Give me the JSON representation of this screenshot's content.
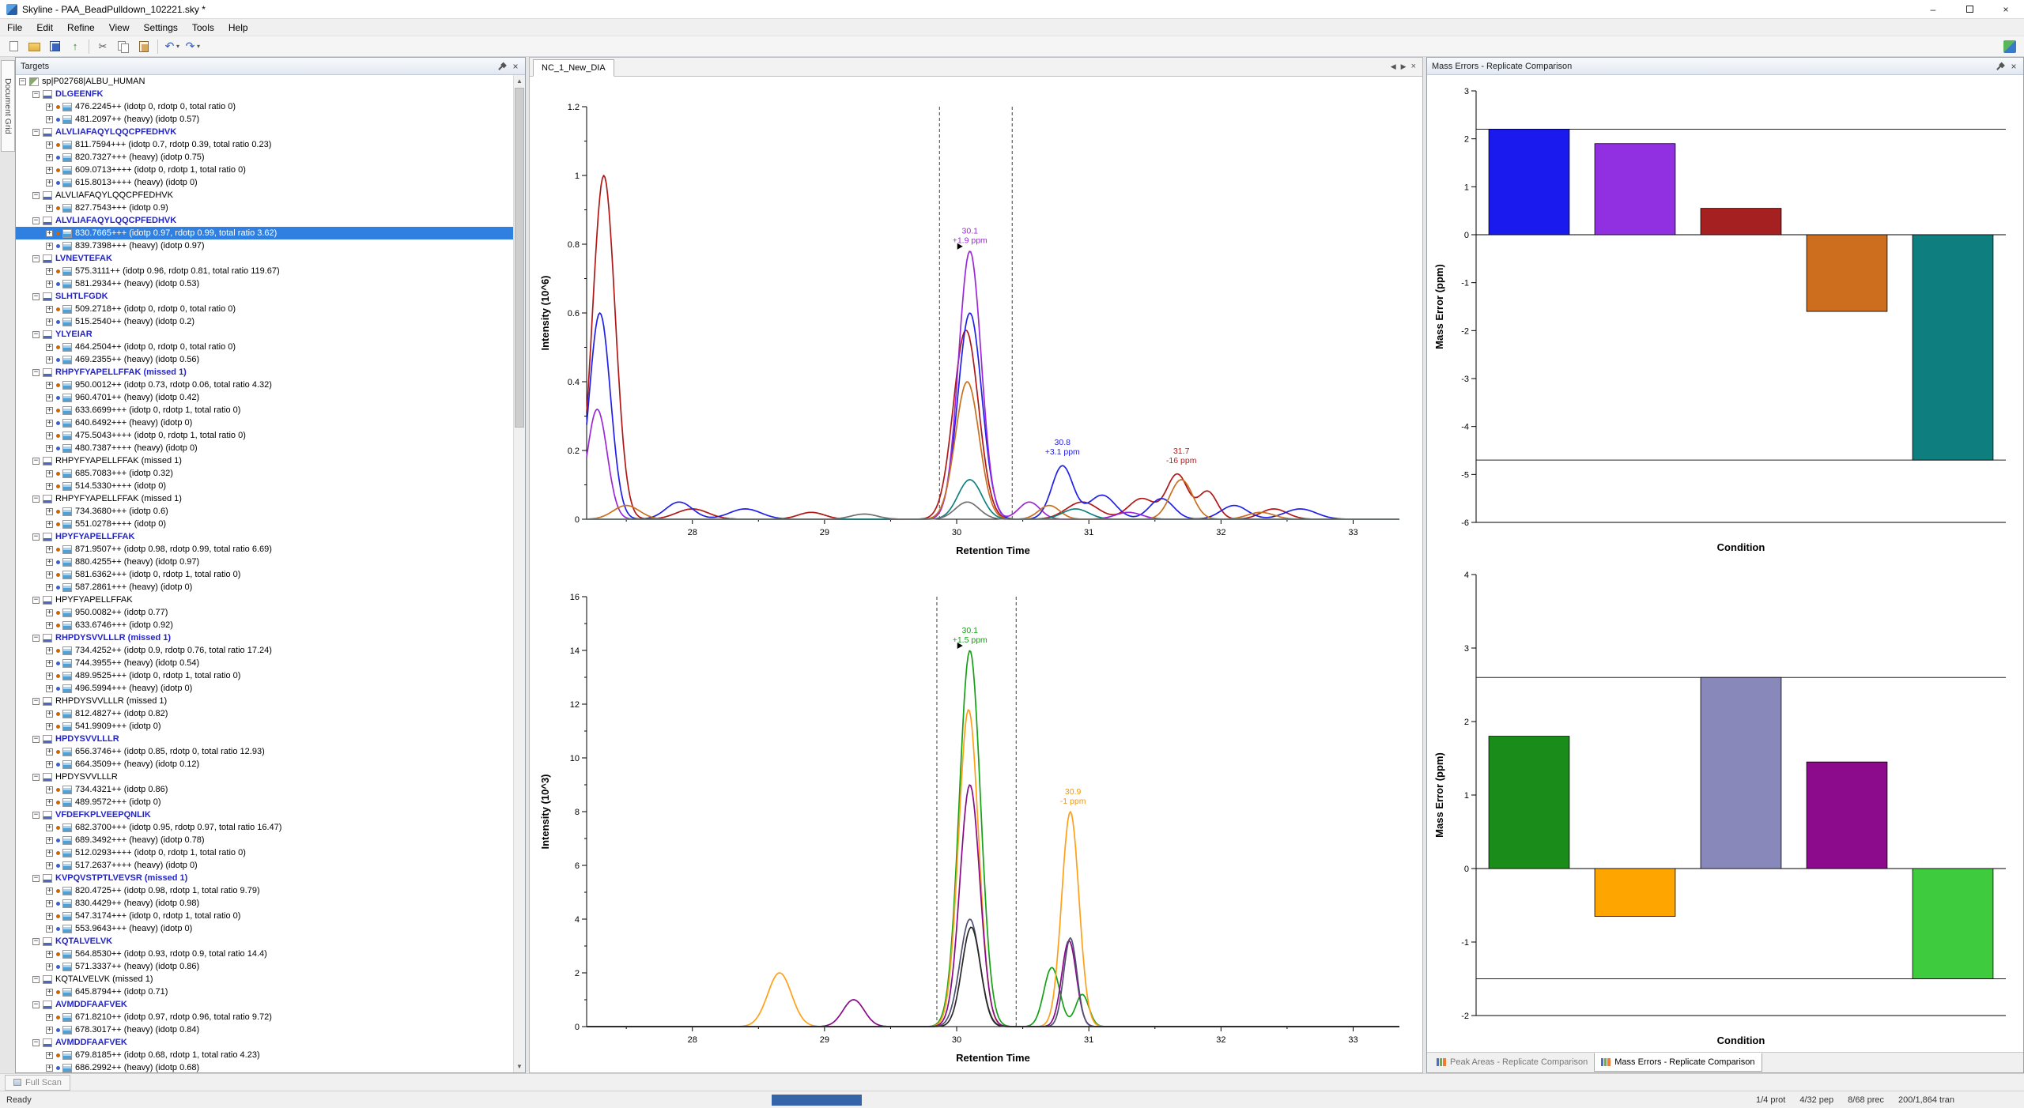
{
  "window": {
    "title": "Skyline - PAA_BeadPulldown_102221.sky *"
  },
  "menu": {
    "items": [
      "File",
      "Edit",
      "Refine",
      "View",
      "Settings",
      "Tools",
      "Help"
    ]
  },
  "toolbar": {
    "buttons": [
      {
        "name": "new-document",
        "icon": "new"
      },
      {
        "name": "open-file",
        "icon": "open"
      },
      {
        "name": "save",
        "icon": "save"
      },
      {
        "name": "publish",
        "icon": "publish",
        "glyph": "↑"
      },
      {
        "sep": true
      },
      {
        "name": "cut",
        "icon": "cut",
        "glyph": "✂"
      },
      {
        "name": "copy",
        "icon": "copy"
      },
      {
        "name": "paste",
        "icon": "paste"
      },
      {
        "sep": true
      },
      {
        "name": "undo",
        "icon": "undo",
        "glyph": "↶",
        "dropdown": true
      },
      {
        "name": "redo",
        "icon": "redo",
        "glyph": "↷",
        "dropdown": true
      }
    ]
  },
  "left_strip": {
    "tab": "Document Grid"
  },
  "targets": {
    "title": "Targets",
    "root": "sp|P02768|ALBU_HUMAN",
    "selection": {
      "peptide_index": 3,
      "child_index": 0
    },
    "peptides": [
      {
        "label": "DLGEENFK",
        "color": "blue",
        "children": [
          "476.2245++ (idotp 0, rdotp 0, total ratio 0)",
          "481.2097++ (heavy) (idotp 0.57)"
        ]
      },
      {
        "label": "ALVLIAFAQYLQQCPFEDHVK",
        "color": "blue",
        "children": [
          "811.7594+++ (idotp 0.7, rdotp 0.39, total ratio 0.23)",
          "820.7327+++ (heavy) (idotp 0.75)",
          "609.0713++++ (idotp 0, rdotp 1, total ratio 0)",
          "615.8013++++ (heavy) (idotp 0)"
        ]
      },
      {
        "label": "ALVLIAFAQYLQQCPFEDHVK",
        "color": "black",
        "children": [
          "827.7543+++ (idotp 0.9)"
        ]
      },
      {
        "label": "ALVLIAFAQYLQQCPFEDHVK",
        "color": "blue",
        "children": [
          "830.7665+++ (idotp 0.97, rdotp 0.99, total ratio 3.62)",
          "839.7398+++ (heavy) (idotp 0.97)"
        ]
      },
      {
        "label": "LVNEVTEFAK",
        "color": "blue",
        "children": [
          "575.3111++ (idotp 0.96, rdotp 0.81, total ratio 119.67)",
          "581.2934++ (heavy) (idotp 0.53)"
        ]
      },
      {
        "label": "SLHTLFGDK",
        "color": "blue",
        "children": [
          "509.2718++ (idotp 0, rdotp 0, total ratio 0)",
          "515.2540++ (heavy) (idotp 0.2)"
        ]
      },
      {
        "label": "YLYEIAR",
        "color": "blue",
        "children": [
          "464.2504++ (idotp 0, rdotp 0, total ratio 0)",
          "469.2355++ (heavy) (idotp 0.56)"
        ]
      },
      {
        "label": "RHPYFYAPELLFFAK (missed 1)",
        "color": "blue",
        "children": [
          "950.0012++ (idotp 0.73, rdotp 0.06, total ratio 4.32)",
          "960.4701++ (heavy) (idotp 0.42)",
          "633.6699+++ (idotp 0, rdotp 1, total ratio 0)",
          "640.6492+++ (heavy) (idotp 0)",
          "475.5043++++ (idotp 0, rdotp 1, total ratio 0)",
          "480.7387++++ (heavy) (idotp 0)"
        ]
      },
      {
        "label": "RHPYFYAPELLFFAK (missed 1)",
        "color": "black",
        "children": [
          "685.7083+++ (idotp 0.32)",
          "514.5330++++ (idotp 0)"
        ]
      },
      {
        "label": "RHPYFYAPELLFFAK (missed 1)",
        "color": "black",
        "children": [
          "734.3680+++ (idotp 0.6)",
          "551.0278++++ (idotp 0)"
        ]
      },
      {
        "label": "HPYFYAPELLFFAK",
        "color": "blue",
        "children": [
          "871.9507++ (idotp 0.98, rdotp 0.99, total ratio 6.69)",
          "880.4255++ (heavy) (idotp 0.97)",
          "581.6362+++ (idotp 0, rdotp 1, total ratio 0)",
          "587.2861+++ (heavy) (idotp 0)"
        ]
      },
      {
        "label": "HPYFYAPELLFFAK",
        "color": "black",
        "children": [
          "950.0082++ (idotp 0.77)",
          "633.6746+++ (idotp 0.92)"
        ]
      },
      {
        "label": "RHPDYSVVLLLR (missed 1)",
        "color": "blue",
        "children": [
          "734.4252++ (idotp 0.9, rdotp 0.76, total ratio 17.24)",
          "744.3955++ (heavy) (idotp 0.54)",
          "489.9525+++ (idotp 0, rdotp 1, total ratio 0)",
          "496.5994+++ (heavy) (idotp 0)"
        ]
      },
      {
        "label": "RHPDYSVVLLLR (missed 1)",
        "color": "black",
        "children": [
          "812.4827++ (idotp 0.82)",
          "541.9909+++ (idotp 0)"
        ]
      },
      {
        "label": "HPDYSVVLLLR",
        "color": "blue",
        "children": [
          "656.3746++ (idotp 0.85, rdotp 0, total ratio 12.93)",
          "664.3509++ (heavy) (idotp 0.12)"
        ]
      },
      {
        "label": "HPDYSVVLLLR",
        "color": "black",
        "children": [
          "734.4321++ (idotp 0.86)",
          "489.9572+++ (idotp 0)"
        ]
      },
      {
        "label": "VFDEFKPLVEEPQNLIK",
        "color": "blue",
        "children": [
          "682.3700+++ (idotp 0.95, rdotp 0.97, total ratio 16.47)",
          "689.3492+++ (heavy) (idotp 0.78)",
          "512.0293++++ (idotp 0, rdotp 1, total ratio 0)",
          "517.2637++++ (heavy) (idotp 0)"
        ]
      },
      {
        "label": "KVPQVSTPTLVEVSR (missed 1)",
        "color": "blue",
        "children": [
          "820.4725++ (idotp 0.98, rdotp 1, total ratio 9.79)",
          "830.4429++ (heavy) (idotp 0.98)",
          "547.3174+++ (idotp 0, rdotp 1, total ratio 0)",
          "553.9643+++ (heavy) (idotp 0)"
        ]
      },
      {
        "label": "KQTALVELVK",
        "color": "blue",
        "children": [
          "564.8530++ (idotp 0.93, rdotp 0.9, total ratio 14.4)",
          "571.3337++ (heavy) (idotp 0.86)"
        ]
      },
      {
        "label": "KQTALVELVK (missed 1)",
        "color": "black",
        "children": [
          "645.8794++ (idotp 0.71)"
        ]
      },
      {
        "label": "AVMDDFAAFVEK",
        "color": "blue",
        "children": [
          "671.8210++ (idotp 0.97, rdotp 0.96, total ratio 9.72)",
          "678.3017++ (heavy) (idotp 0.84)"
        ]
      },
      {
        "label": "AVMDDFAAFVEK",
        "color": "blue",
        "children": [
          "679.8185++ (idotp 0.68, rdotp 1, total ratio 4.23)",
          "686.2992++ (heavy) (idotp 0.68)"
        ]
      }
    ]
  },
  "chromatogram": {
    "tab": "NC_1_New_DIA"
  },
  "mass_errors": {
    "title": "Mass Errors - Replicate Comparison"
  },
  "bottom_tabs": [
    {
      "label": "Peak Areas - Replicate Comparison",
      "active": false
    },
    {
      "label": "Mass Errors - Replicate Comparison",
      "active": true
    }
  ],
  "fullscan": {
    "label": "Full Scan"
  },
  "status": {
    "ready": "Ready",
    "counts": [
      "1/4 prot",
      "4/32 pep",
      "8/68 prec",
      "200/1,864 tran"
    ]
  },
  "chart_data": [
    {
      "id": "chrom_top",
      "type": "line",
      "xlabel": "Retention Time",
      "ylabel": "Intensity (10^6)",
      "xlim": [
        27.2,
        33.35
      ],
      "ylim": [
        0,
        1.2
      ],
      "xticks": [
        28,
        29,
        30,
        31,
        32,
        33
      ],
      "yticks": [
        0,
        0.2,
        0.4,
        0.6,
        0.8,
        1,
        1.2
      ],
      "boundaries": [
        29.87,
        30.42
      ],
      "annotations": [
        {
          "x": 30.1,
          "y": 0.78,
          "lines": [
            "30.1",
            "+1.9 ppm"
          ],
          "color": "#9b28d8",
          "pointer": true
        },
        {
          "x": 30.8,
          "y": 0.165,
          "lines": [
            "30.8",
            "+3.1 ppm"
          ],
          "color": "#2020e8",
          "pointer": false
        },
        {
          "x": 31.7,
          "y": 0.14,
          "lines": [
            "31.7",
            "-16 ppm"
          ],
          "color": "#c01818",
          "pointer": false
        }
      ],
      "series": [
        {
          "name": "trace-darkred",
          "color": "#b01818",
          "peaks": [
            [
              27.33,
              1.0,
              0.085
            ],
            [
              28.0,
              0.03,
              0.12
            ],
            [
              28.9,
              0.02,
              0.1
            ],
            [
              30.07,
              0.55,
              0.095
            ],
            [
              30.95,
              0.05,
              0.12
            ],
            [
              31.4,
              0.06,
              0.1
            ],
            [
              31.67,
              0.13,
              0.08
            ],
            [
              31.9,
              0.08,
              0.07
            ],
            [
              32.4,
              0.03,
              0.1
            ]
          ]
        },
        {
          "name": "trace-blue",
          "color": "#2020e8",
          "peaks": [
            [
              27.3,
              0.6,
              0.08
            ],
            [
              27.9,
              0.05,
              0.1
            ],
            [
              28.4,
              0.03,
              0.12
            ],
            [
              30.1,
              0.6,
              0.09
            ],
            [
              30.8,
              0.155,
              0.08
            ],
            [
              31.1,
              0.07,
              0.1
            ],
            [
              31.55,
              0.06,
              0.09
            ],
            [
              32.1,
              0.04,
              0.1
            ],
            [
              32.6,
              0.03,
              0.12
            ]
          ]
        },
        {
          "name": "trace-purple",
          "color": "#9b28d8",
          "peaks": [
            [
              27.28,
              0.32,
              0.075
            ],
            [
              30.1,
              0.78,
              0.085
            ],
            [
              30.55,
              0.05,
              0.08
            ],
            [
              31.3,
              0.02,
              0.1
            ]
          ]
        },
        {
          "name": "trace-orange",
          "color": "#c87020",
          "peaks": [
            [
              27.5,
              0.04,
              0.1
            ],
            [
              30.08,
              0.4,
              0.09
            ],
            [
              30.7,
              0.04,
              0.08
            ],
            [
              31.7,
              0.115,
              0.085
            ],
            [
              32.3,
              0.02,
              0.1
            ]
          ]
        },
        {
          "name": "trace-teal",
          "color": "#108080",
          "peaks": [
            [
              30.1,
              0.115,
              0.09
            ],
            [
              30.9,
              0.03,
              0.1
            ]
          ]
        },
        {
          "name": "trace-gray",
          "color": "#707070",
          "peaks": [
            [
              29.3,
              0.015,
              0.1
            ],
            [
              30.08,
              0.05,
              0.09
            ]
          ]
        }
      ]
    },
    {
      "id": "chrom_bottom",
      "type": "line",
      "xlabel": "Retention Time",
      "ylabel": "Intensity (10^3)",
      "xlim": [
        27.2,
        33.35
      ],
      "ylim": [
        0,
        16
      ],
      "xticks": [
        28,
        29,
        30,
        31,
        32,
        33
      ],
      "yticks": [
        0,
        2,
        4,
        6,
        8,
        10,
        12,
        14,
        16
      ],
      "boundaries": [
        29.85,
        30.45
      ],
      "annotations": [
        {
          "x": 30.1,
          "y": 14.0,
          "lines": [
            "30.1",
            "+1.5 ppm"
          ],
          "color": "#15a015",
          "pointer": true
        },
        {
          "x": 30.88,
          "y": 8.0,
          "lines": [
            "30.9",
            "-1 ppm"
          ],
          "color": "#f09810",
          "pointer": false
        }
      ],
      "series": [
        {
          "name": "trace-green",
          "color": "#15a015",
          "peaks": [
            [
              30.1,
              14.0,
              0.08
            ],
            [
              30.72,
              2.2,
              0.06
            ],
            [
              30.95,
              1.2,
              0.05
            ]
          ]
        },
        {
          "name": "trace-orange",
          "color": "#ffa018",
          "peaks": [
            [
              28.66,
              2.0,
              0.09
            ],
            [
              30.09,
              11.8,
              0.075
            ],
            [
              30.86,
              8.0,
              0.065
            ]
          ]
        },
        {
          "name": "trace-purple",
          "color": "#880a88",
          "peaks": [
            [
              29.22,
              1.0,
              0.08
            ],
            [
              30.1,
              9.0,
              0.075
            ],
            [
              30.85,
              3.2,
              0.055
            ]
          ]
        },
        {
          "name": "trace-slate",
          "color": "#505070",
          "peaks": [
            [
              30.1,
              4.0,
              0.075
            ],
            [
              30.86,
              3.3,
              0.05
            ]
          ]
        },
        {
          "name": "trace-dark",
          "color": "#282828",
          "peaks": [
            [
              30.11,
              3.7,
              0.07
            ]
          ]
        }
      ]
    },
    {
      "id": "mass_errors_top",
      "type": "bar",
      "xlabel": "Condition",
      "ylabel": "Mass Error (ppm)",
      "ylim": [
        -6,
        3
      ],
      "yticks": [
        3,
        2,
        1,
        0,
        -1,
        -2,
        -3,
        -4,
        -5,
        -6
      ],
      "values": [
        2.2,
        1.9,
        0.55,
        -1.6,
        -4.7
      ],
      "colors": [
        "#1a1aee",
        "#9030e0",
        "#a52020",
        "#cc6e1e",
        "#0e7e7e"
      ],
      "ref_lines": [
        2.2,
        -4.7
      ]
    },
    {
      "id": "mass_errors_bottom",
      "type": "bar",
      "xlabel": "Condition",
      "ylabel": "Mass Error (ppm)",
      "ylim": [
        -2,
        4
      ],
      "yticks": [
        4,
        3,
        2,
        1,
        0,
        -1,
        -2
      ],
      "values": [
        1.8,
        -0.65,
        2.6,
        1.45,
        -1.5
      ],
      "colors": [
        "#1a8c1a",
        "#ffa500",
        "#8888bb",
        "#8c0a8c",
        "#3ecc3e"
      ],
      "ref_lines": [
        2.6,
        -1.5
      ]
    }
  ]
}
